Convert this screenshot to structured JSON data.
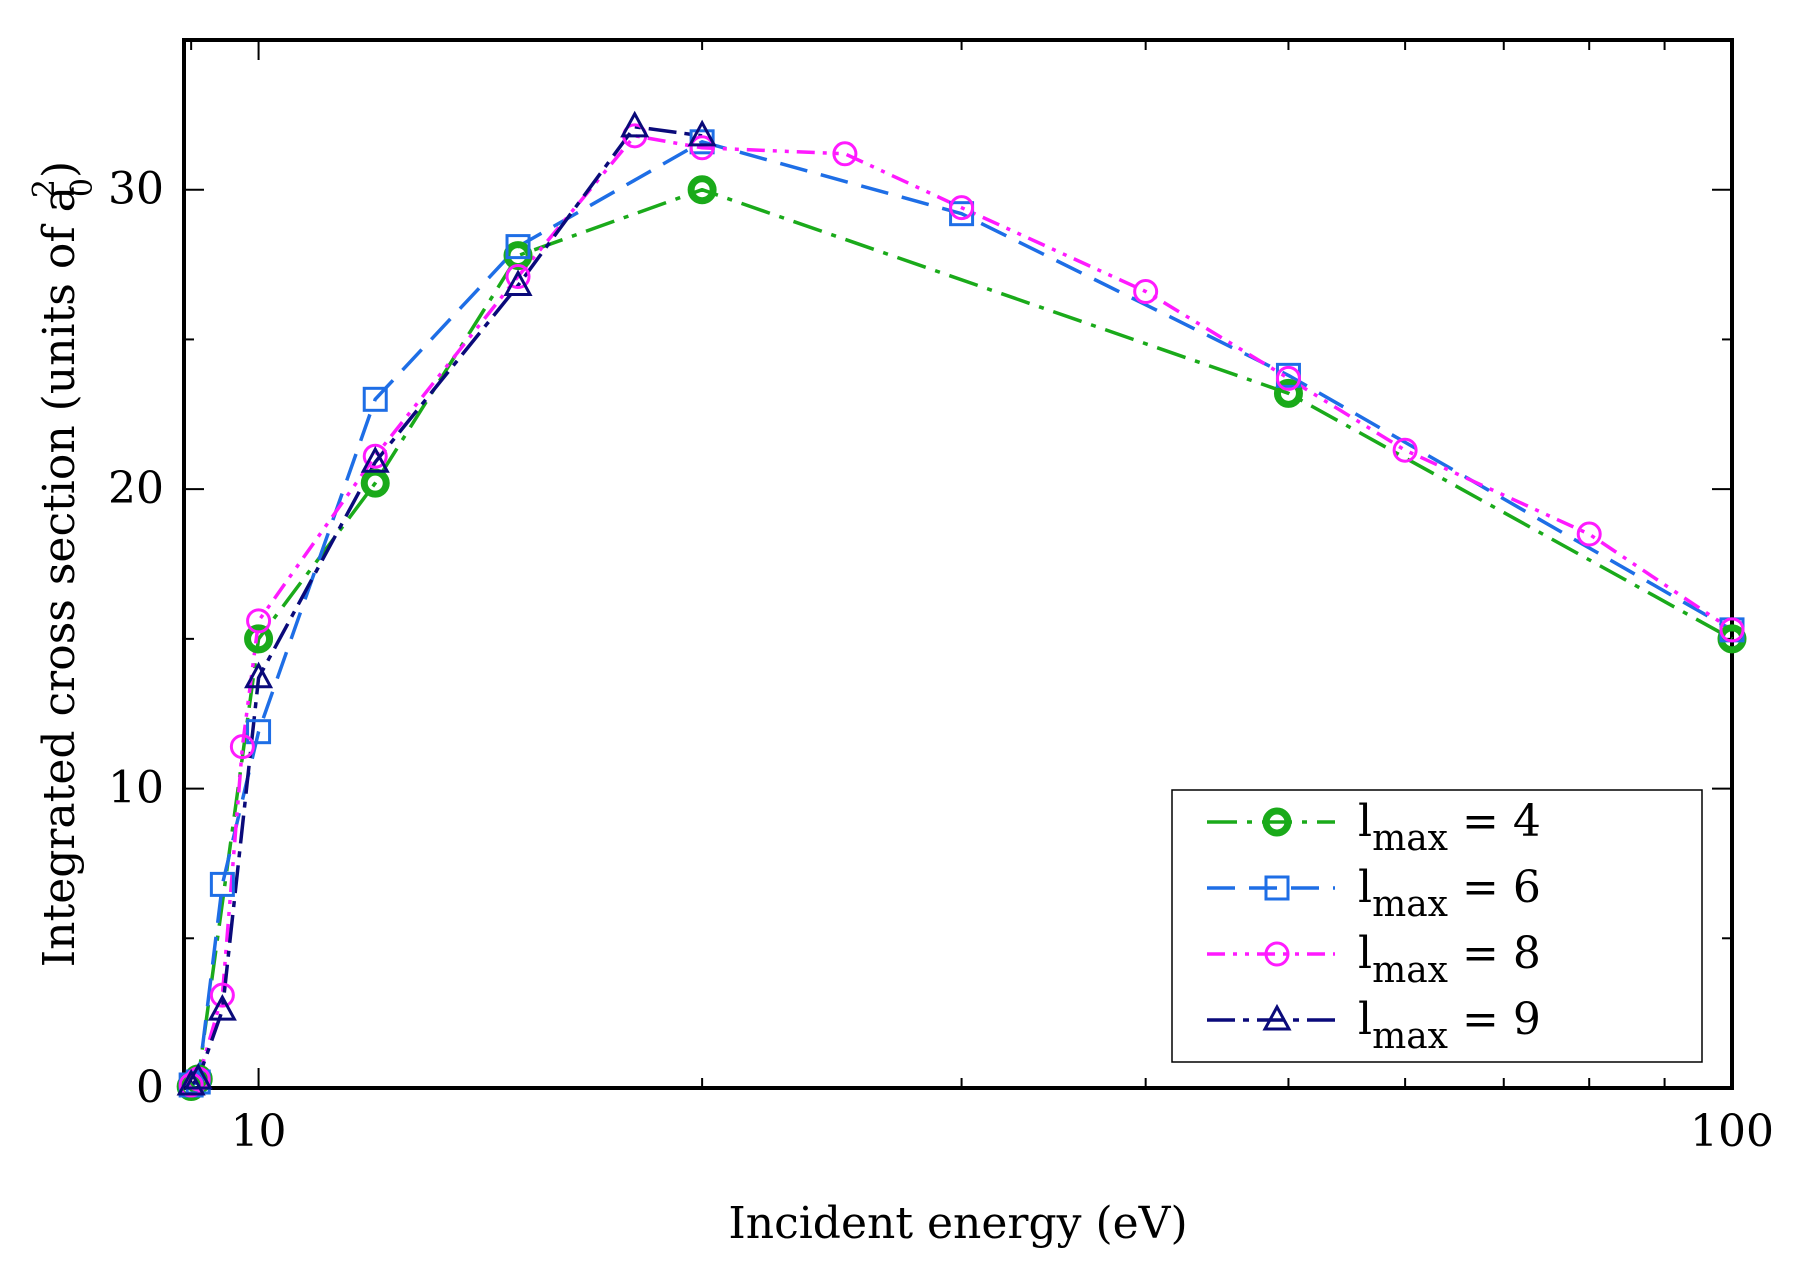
{
  "chart_data": {
    "type": "line",
    "title": "",
    "xlabel": "Incident energy (eV)",
    "ylabel": "Integrated cross section (units of a",
    "ylabel_sub": "0",
    "ylabel_sup": "2",
    "ylabel_close": ")",
    "xscale": "log",
    "xlim": [
      8.9,
      100
    ],
    "ylim": [
      0,
      35
    ],
    "xticks_major": [
      10,
      100
    ],
    "xtick_labels": [
      "10",
      "100"
    ],
    "xticks_minor": [
      9,
      20,
      30,
      40,
      50,
      60,
      70,
      80,
      90
    ],
    "yticks_major": [
      0,
      10,
      20,
      30
    ],
    "ytick_labels": [
      "0",
      "10",
      "20",
      "30"
    ],
    "yticks_minor": [
      5,
      15,
      25
    ],
    "grid": false,
    "legend_position": "bottom-right",
    "series": [
      {
        "name_main": "l",
        "name_sub": "max",
        "name_rest": " = 4",
        "color": "#1aaa1a",
        "marker": "circle-filled",
        "dash": "30 10 5 10",
        "x": [
          9.0,
          9.1,
          10.0,
          12.0,
          15.0,
          20.0,
          50.0,
          100.0
        ],
        "y": [
          0.05,
          0.3,
          15.0,
          20.2,
          27.8,
          30.0,
          23.2,
          15.0
        ]
      },
      {
        "name_main": "l",
        "name_sub": "max",
        "name_rest": " = 6",
        "color": "#1e6ee6",
        "marker": "square",
        "dash": "28 14",
        "x": [
          9.0,
          9.1,
          9.45,
          10.0,
          12.0,
          15.0,
          20.0,
          30.0,
          50.0,
          100.0
        ],
        "y": [
          0.1,
          0.2,
          6.8,
          11.9,
          23.0,
          28.1,
          31.6,
          29.2,
          23.8,
          15.3
        ]
      },
      {
        "name_main": "l",
        "name_sub": "max",
        "name_rest": " = 8",
        "color": "#ff1aff",
        "marker": "circle-open",
        "dash": "18 8 4 8 4 8",
        "x": [
          9.0,
          9.1,
          9.45,
          9.75,
          10.0,
          12.0,
          15.0,
          18.0,
          20.0,
          25.0,
          30.0,
          40.0,
          50.0,
          60.0,
          80.0,
          100.0
        ],
        "y": [
          0.1,
          0.3,
          3.1,
          11.4,
          15.6,
          21.1,
          27.1,
          31.8,
          31.4,
          31.2,
          29.4,
          26.6,
          23.7,
          21.3,
          18.5,
          15.3
        ]
      },
      {
        "name_main": "l",
        "name_sub": "max",
        "name_rest": " = 9",
        "color": "#0a0a7a",
        "marker": "triangle",
        "dash": "28 8 6 8",
        "x": [
          9.0,
          9.1,
          9.45,
          10.0,
          12.0,
          15.0,
          18.0,
          20.0
        ],
        "y": [
          0.1,
          0.3,
          2.6,
          13.7,
          20.9,
          26.8,
          32.1,
          31.8
        ]
      }
    ]
  }
}
